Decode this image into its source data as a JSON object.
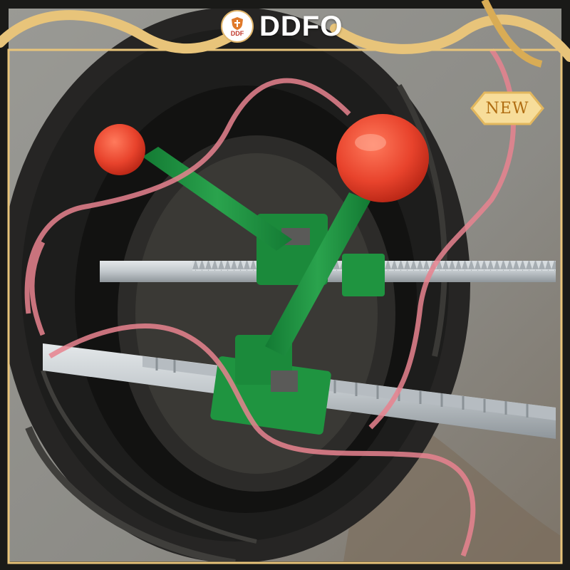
{
  "brand": {
    "logo_text": "DDF",
    "name": "DDFO"
  },
  "badge": {
    "label": "NEW"
  },
  "colors": {
    "frame_gold": "#e8c47a",
    "ribbon_pink": "#e8838f",
    "tool_green": "#1f9440",
    "knob_red": "#e8432c",
    "rack_steel": "#c9ced2",
    "tire_black": "#1d1d1c"
  },
  "product": {
    "subject": "tire-spreader-tool",
    "handles": 2,
    "racks": 2
  }
}
